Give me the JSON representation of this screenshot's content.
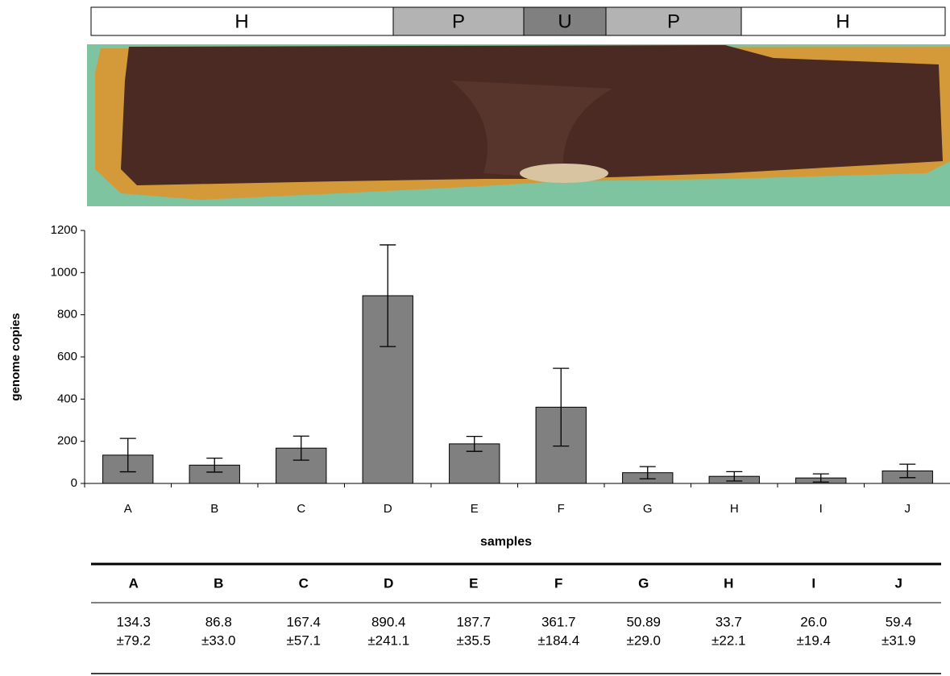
{
  "regions": [
    "H",
    "P",
    "U",
    "P",
    "H"
  ],
  "chart_data": {
    "type": "bar",
    "categories": [
      "A",
      "B",
      "C",
      "D",
      "E",
      "F",
      "G",
      "H",
      "I",
      "J"
    ],
    "values": [
      134.3,
      86.8,
      167.4,
      890.4,
      187.7,
      361.7,
      50.89,
      33.7,
      26.0,
      59.4
    ],
    "errors": [
      79.2,
      33.0,
      57.1,
      241.1,
      35.5,
      184.4,
      29.0,
      22.1,
      19.4,
      31.9
    ],
    "color": "#808080",
    "ylim": [
      0,
      1200
    ],
    "yticks": [
      0,
      200,
      400,
      600,
      800,
      1000,
      1200
    ],
    "xlabel": "samples",
    "ylabel": "genome copies",
    "grid": false
  },
  "table": {
    "header": [
      "A",
      "B",
      "C",
      "D",
      "E",
      "F",
      "G",
      "H",
      "I",
      "J"
    ],
    "rows": [
      [
        "134.3",
        "86.8",
        "167.4",
        "890.4",
        "187.7",
        "361.7",
        "50.89",
        "33.7",
        "26.0",
        "59.4"
      ],
      [
        "±79.2",
        "±33.0",
        "±57.1",
        "±241.1",
        "±35.5",
        "±184.4",
        "±29.0",
        "±22.1",
        "±19.4",
        "±31.9"
      ]
    ]
  }
}
